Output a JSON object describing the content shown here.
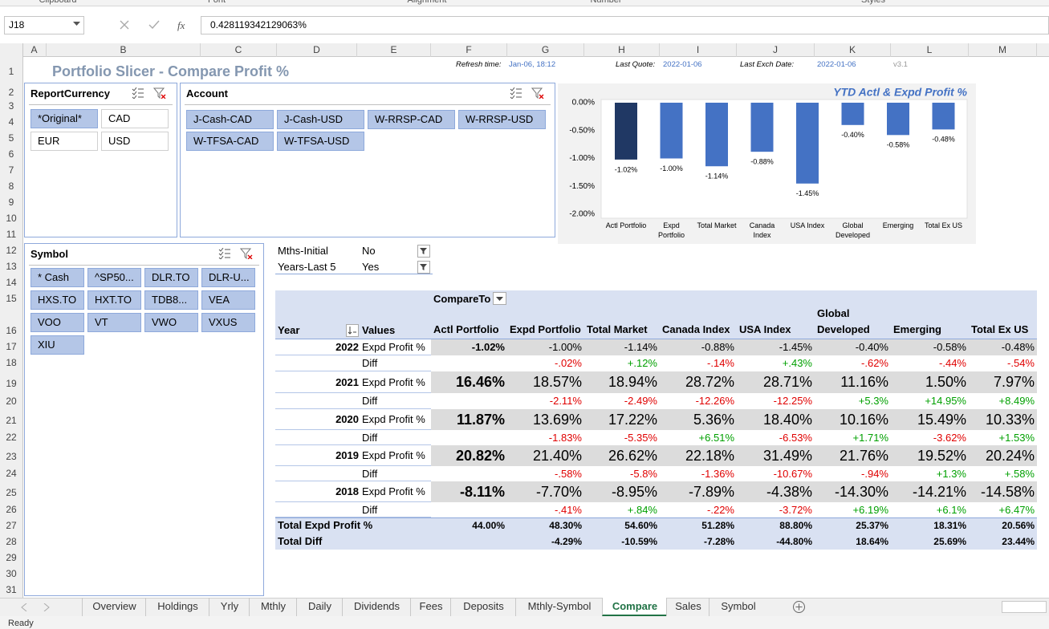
{
  "ribbon_groups": [
    "Clipboard",
    "Font",
    "Alignment",
    "Number",
    "Styles"
  ],
  "formula_bar": {
    "name_box": "J18",
    "fx_icon": "fx",
    "formula": "0.428119342129063%"
  },
  "column_headers": [
    "A",
    "B",
    "C",
    "D",
    "E",
    "F",
    "G",
    "H",
    "I",
    "J",
    "K",
    "L",
    "M"
  ],
  "row_headers": [
    "1",
    "2",
    "3",
    "4",
    "5",
    "6",
    "7",
    "8",
    "9",
    "10",
    "11",
    "12",
    "13",
    "14",
    "15",
    "16",
    "17",
    "18",
    "19",
    "20",
    "21",
    "22",
    "23",
    "24",
    "25",
    "26",
    "27",
    "28",
    "29",
    "30",
    "31"
  ],
  "sheet": {
    "title": "Portfolio Slicer - Compare Profit %",
    "refresh_label": "Refresh time:",
    "refresh_time": "Jan-06, 18:12",
    "quote_label": "Last Quote:",
    "quote_date": "2022-01-06",
    "exch_label": "Last Exch Date:",
    "exch_date": "2022-01-06",
    "version": "v3.1"
  },
  "slicers": [
    {
      "title": "ReportCurrency",
      "items": [
        {
          "label": "*Original*",
          "selected": true
        },
        {
          "label": "CAD",
          "selected": false
        },
        {
          "label": "EUR",
          "selected": false
        },
        {
          "label": "USD",
          "selected": false
        }
      ]
    },
    {
      "title": "Account",
      "items": [
        {
          "label": "J-Cash-CAD",
          "selected": true
        },
        {
          "label": "J-Cash-USD",
          "selected": true
        },
        {
          "label": "W-RRSP-CAD",
          "selected": true
        },
        {
          "label": "W-RRSP-USD",
          "selected": true
        },
        {
          "label": "W-TFSA-CAD",
          "selected": true
        },
        {
          "label": "W-TFSA-USD",
          "selected": true
        }
      ]
    },
    {
      "title": "Symbol",
      "items": [
        {
          "label": "* Cash",
          "selected": true
        },
        {
          "label": "^SP50...",
          "selected": true
        },
        {
          "label": "DLR.TO",
          "selected": true
        },
        {
          "label": "DLR-U...",
          "selected": true
        },
        {
          "label": "HXS.TO",
          "selected": true
        },
        {
          "label": "HXT.TO",
          "selected": true
        },
        {
          "label": "TDB8...",
          "selected": true
        },
        {
          "label": "VEA",
          "selected": true
        },
        {
          "label": "VOO",
          "selected": true
        },
        {
          "label": "VT",
          "selected": true
        },
        {
          "label": "VWO",
          "selected": true
        },
        {
          "label": "VXUS",
          "selected": true
        },
        {
          "label": "XIU",
          "selected": true
        }
      ]
    }
  ],
  "filters": [
    [
      "Mths-Initial",
      "No"
    ],
    [
      "Years-Last 5",
      "Yes"
    ]
  ],
  "chart_data": {
    "type": "bar",
    "title": "YTD Actl & Expd Profit %",
    "categories": [
      "Actl Portfolio",
      "Expd Portfolio",
      "Total Market",
      "Canada Index",
      "USA Index",
      "Global Developed",
      "Emerging",
      "Total Ex US"
    ],
    "values": [
      -1.02,
      -1.0,
      -1.14,
      -0.88,
      -1.45,
      -0.4,
      -0.58,
      -0.48
    ],
    "value_labels": [
      "-1.02%",
      "-1.00%",
      "-1.14%",
      "-0.88%",
      "-1.45%",
      "-0.40%",
      "-0.58%",
      "-0.48%"
    ],
    "colors": [
      "#203864",
      "#4472c4",
      "#4472c4",
      "#4472c4",
      "#4472c4",
      "#4472c4",
      "#4472c4",
      "#4472c4"
    ],
    "ylim": [
      -2,
      0
    ],
    "yticks": [
      {
        "value": 0,
        "label": "0.00%"
      },
      {
        "value": -0.5,
        "label": "-0.50%"
      },
      {
        "value": -1,
        "label": "-1.00%"
      },
      {
        "value": -1.5,
        "label": "-1.50%"
      },
      {
        "value": -2,
        "label": "-2.00%"
      }
    ],
    "grid": false
  },
  "pivot": {
    "compare_to": "CompareTo",
    "headers": [
      "Year",
      "Values",
      "Actl Portfolio",
      "Expd Portfolio",
      "Total Market",
      "Canada Index",
      "USA Index",
      "Global Developed",
      "Emerging",
      "Total Ex US"
    ],
    "rows": [
      [
        "2022",
        "Expd Profit %",
        "-1.02%",
        "-1.00%",
        "-1.14%",
        "-0.88%",
        "-1.45%",
        "-0.40%",
        "-0.58%",
        "-0.48%"
      ],
      [
        null,
        "Diff",
        null,
        "-.02%",
        "+.12%",
        "-.14%",
        "+.43%",
        "-.62%",
        "-.44%",
        "-.54%"
      ],
      [
        "2021",
        "Expd Profit %",
        "16.46%",
        "18.57%",
        "18.94%",
        "28.72%",
        "28.71%",
        "11.16%",
        "1.50%",
        "7.97%"
      ],
      [
        null,
        "Diff",
        null,
        "-2.11%",
        "-2.49%",
        "-12.26%",
        "-12.25%",
        "+5.3%",
        "+14.95%",
        "+8.49%"
      ],
      [
        "2020",
        "Expd Profit %",
        "11.87%",
        "13.69%",
        "17.22%",
        "5.36%",
        "18.40%",
        "10.16%",
        "15.49%",
        "10.33%"
      ],
      [
        null,
        "Diff",
        null,
        "-1.83%",
        "-5.35%",
        "+6.51%",
        "-6.53%",
        "+1.71%",
        "-3.62%",
        "+1.53%"
      ],
      [
        "2019",
        "Expd Profit %",
        "20.82%",
        "21.40%",
        "26.62%",
        "22.18%",
        "31.49%",
        "21.76%",
        "19.52%",
        "20.24%"
      ],
      [
        null,
        "Diff",
        null,
        "-.58%",
        "-5.8%",
        "-1.36%",
        "-10.67%",
        "-.94%",
        "+1.3%",
        "+.58%"
      ],
      [
        "2018",
        "Expd Profit %",
        "-8.11%",
        "-7.70%",
        "-8.95%",
        "-7.89%",
        "-4.38%",
        "-14.30%",
        "-14.21%",
        "-14.58%"
      ],
      [
        null,
        "Diff",
        null,
        "-.41%",
        "+.84%",
        "-.22%",
        "-3.72%",
        "+6.19%",
        "+6.1%",
        "+6.47%"
      ]
    ],
    "totals": [
      {
        "label": "Total Expd Profit %",
        "values": [
          "44.00%",
          "48.30%",
          "54.60%",
          "51.28%",
          "88.80%",
          "25.37%",
          "18.31%",
          "20.56%"
        ]
      },
      {
        "label": "Total Diff",
        "values": [
          null,
          "-4.29%",
          "-10.59%",
          "-7.28%",
          "-44.80%",
          "18.64%",
          "25.69%",
          "23.44%"
        ]
      }
    ]
  },
  "tabs": [
    "Overview",
    "Holdings",
    "Yrly",
    "Mthly",
    "Daily",
    "Dividends",
    "Fees",
    "Deposits",
    "Mthly-Symbol",
    "Compare",
    "Sales",
    "Symbol"
  ],
  "active_tab": 9,
  "status": "Ready"
}
